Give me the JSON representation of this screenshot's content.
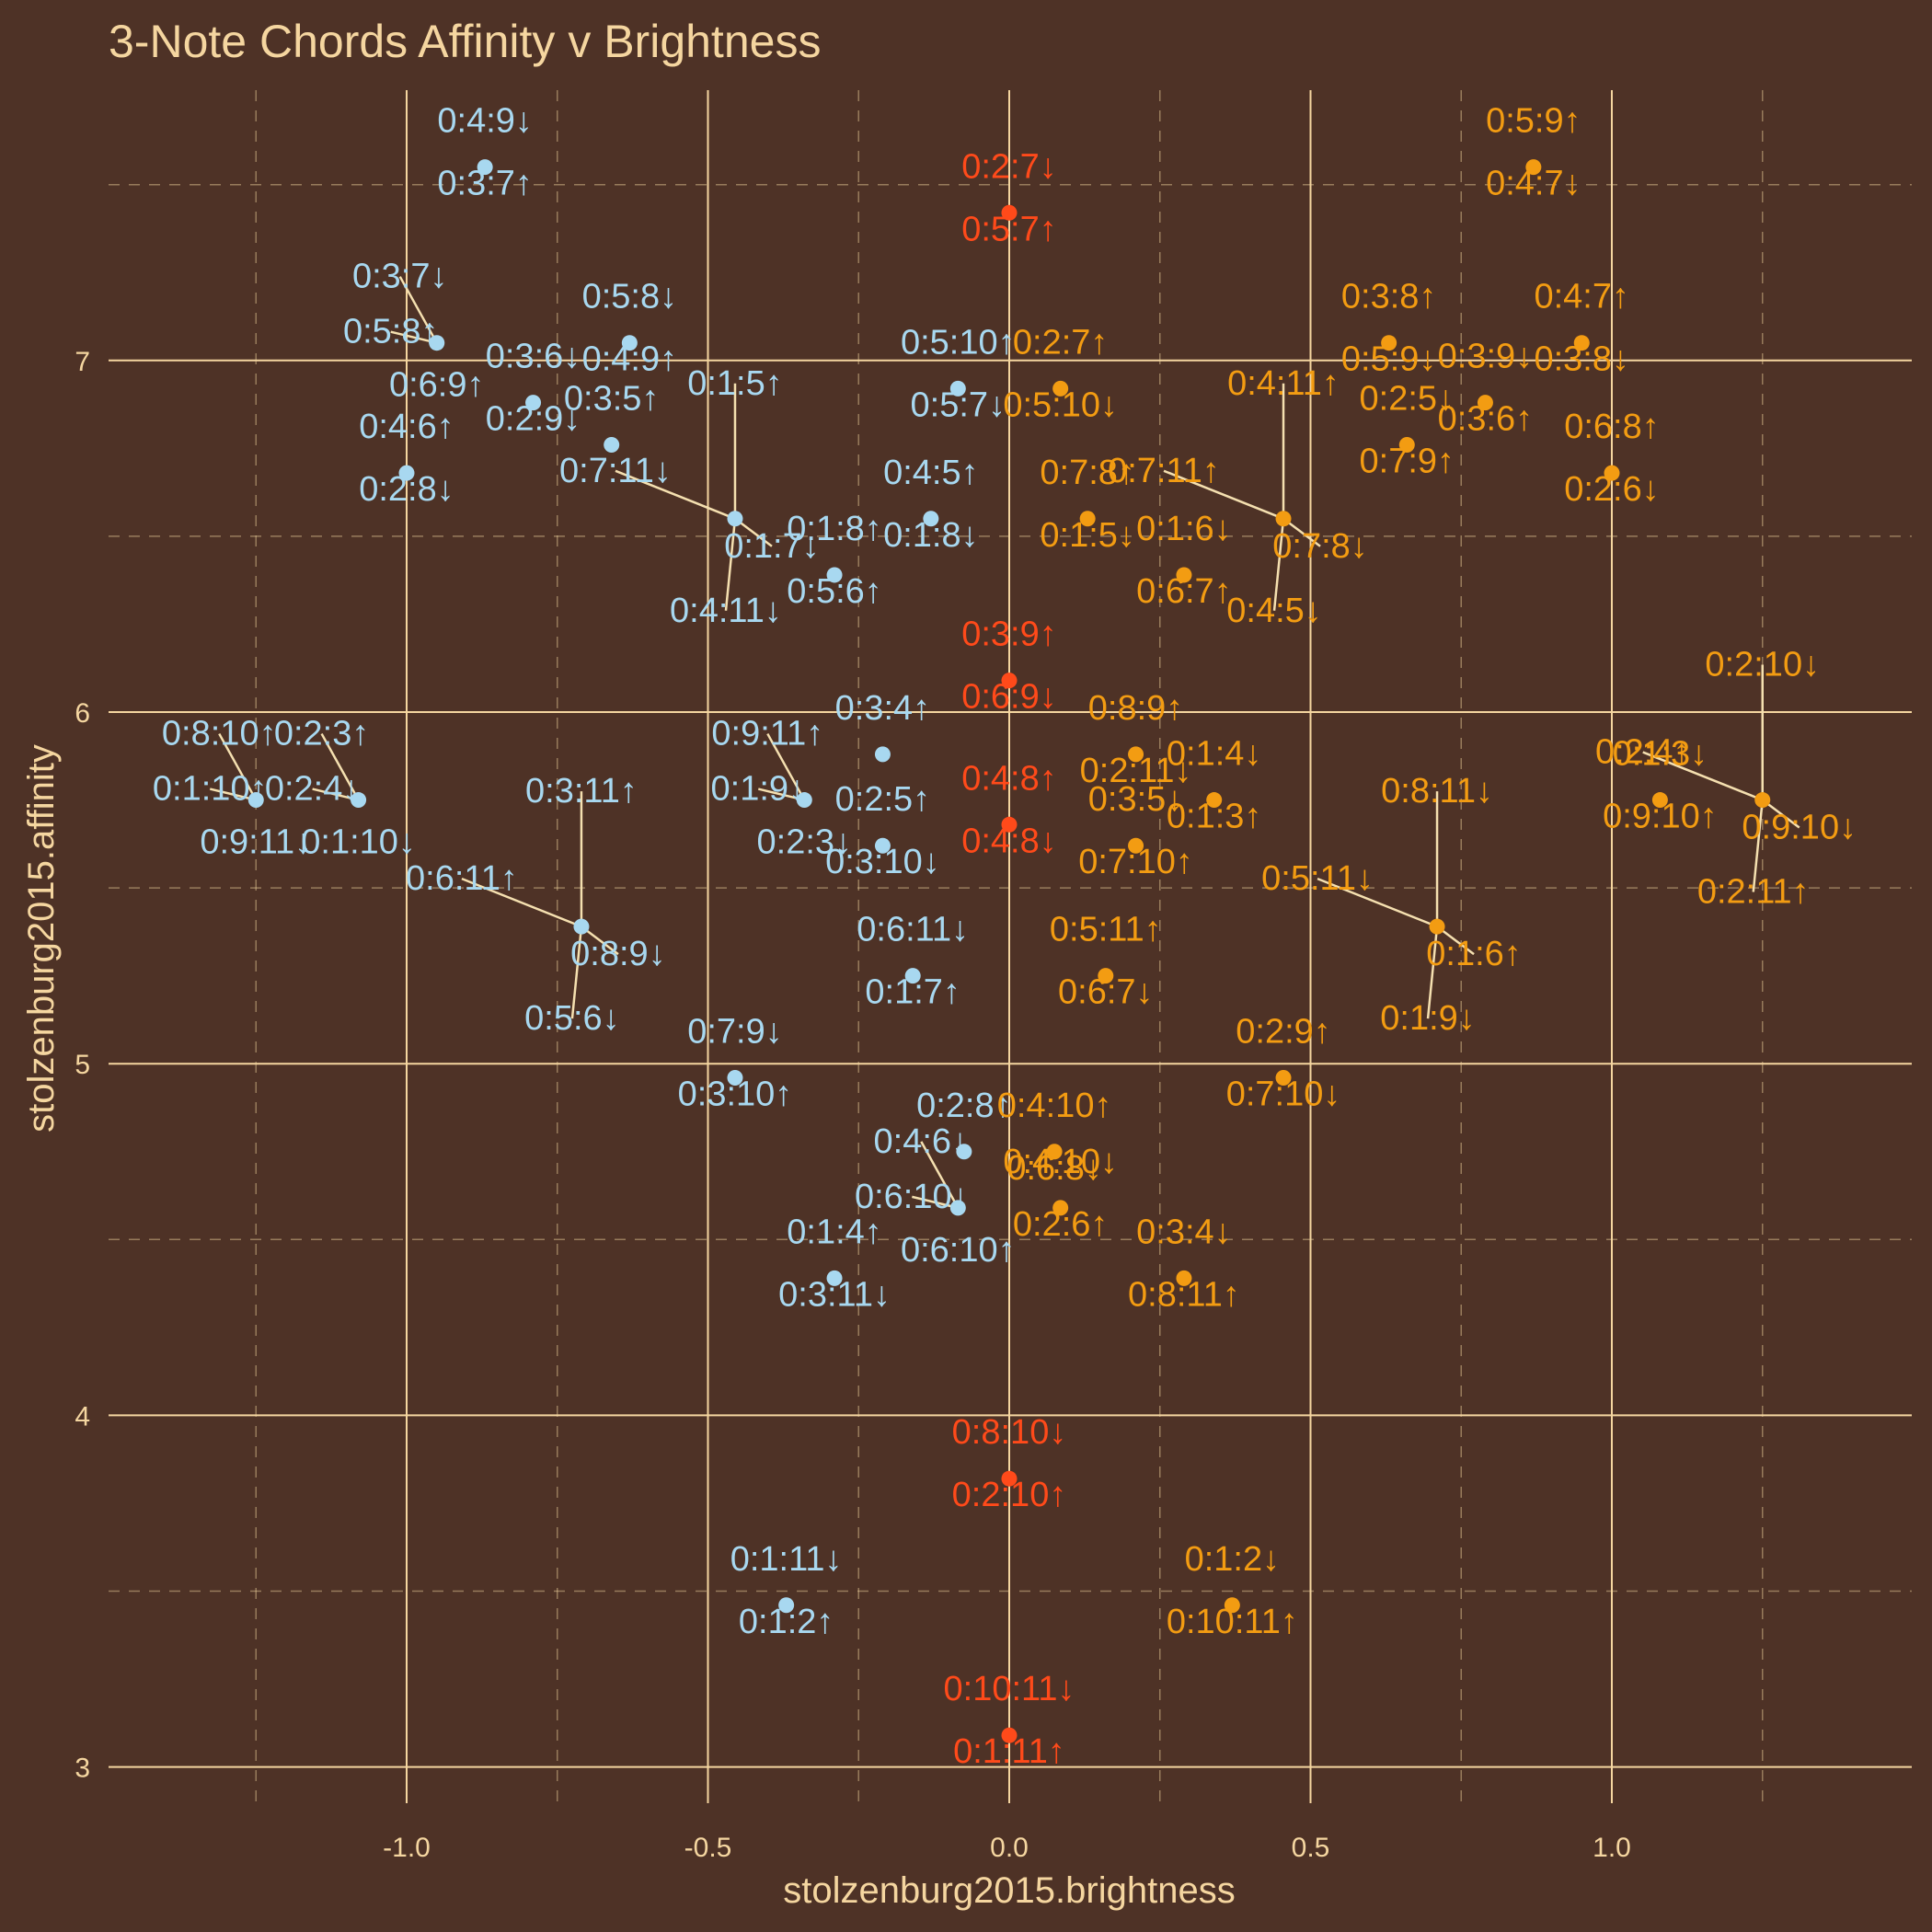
{
  "chart_data": {
    "type": "scatter",
    "title": "3-Note Chords Affinity v Brightness",
    "xlabel": "stolzenburg2015.brightness",
    "ylabel": "stolzenburg2015.affinity",
    "xlim": [
      -1.5,
      1.5
    ],
    "ylim": [
      2.9,
      7.6
    ],
    "x_ticks": [
      -1.0,
      -0.5,
      0.0,
      0.5,
      1.0
    ],
    "x_tick_labels": [
      "-1.0",
      "-0.5",
      "0.0",
      "0.5",
      "1.0"
    ],
    "y_ticks": [
      3,
      4,
      5,
      6,
      7
    ],
    "y_tick_labels": [
      "3",
      "4",
      "5",
      "6",
      "7"
    ],
    "grid": true,
    "legend": "none",
    "colors": {
      "background": "#4e3226",
      "text": "#f5d6a0",
      "grid_major": "#f5d6a0",
      "connector": "#f5e0b0",
      "minor": "#a8d8f0",
      "major": "#f39c12",
      "neutral": "#ff4a1a"
    },
    "series": [
      {
        "group": "minor",
        "color": "#a8d8f0",
        "points": [
          {
            "x": -0.87,
            "y": 7.55,
            "labels": [
              "0:4:9↓",
              "0:3:7↑"
            ]
          },
          {
            "x": -0.95,
            "y": 7.05,
            "labels": [
              "0:3:7↓",
              "0:5:8↑",
              "0:6:9↑"
            ]
          },
          {
            "x": -0.79,
            "y": 6.88,
            "labels": [
              "0:3:6↓",
              "0:2:9↓"
            ]
          },
          {
            "x": -0.63,
            "y": 7.05,
            "labels": [
              "0:5:8↓",
              "0:4:9↑"
            ]
          },
          {
            "x": -1.0,
            "y": 6.68,
            "labels": [
              "0:4:6↑",
              "0:2:8↓"
            ]
          },
          {
            "x": -0.66,
            "y": 6.76,
            "labels": [
              "0:3:5↑"
            ]
          },
          {
            "x": -0.455,
            "y": 6.55,
            "labels": [
              "0:1:5↑",
              "0:7:11↓",
              "0:1:7↓",
              "0:4:11↓"
            ]
          },
          {
            "x": -0.29,
            "y": 6.39,
            "labels": [
              "0:1:8↑",
              "0:5:6↑"
            ]
          },
          {
            "x": -0.085,
            "y": 6.92,
            "labels": [
              "0:5:10↑",
              "0:5:7↓"
            ]
          },
          {
            "x": -0.13,
            "y": 6.55,
            "labels": [
              "0:4:5↑",
              "0:1:8↓"
            ]
          },
          {
            "x": -0.21,
            "y": 5.88,
            "labels": [
              "0:3:4↑"
            ]
          },
          {
            "x": -0.34,
            "y": 5.75,
            "labels": [
              "0:9:11↑",
              "0:1:9↓",
              "0:2:3↓"
            ]
          },
          {
            "x": -0.21,
            "y": 5.62,
            "labels": [
              "0:2:5↑",
              "0:3:10↓"
            ]
          },
          {
            "x": -0.16,
            "y": 5.25,
            "labels": [
              "0:6:11↓",
              "0:1:7↑"
            ]
          },
          {
            "x": -1.25,
            "y": 5.75,
            "labels": [
              "0:8:10↑",
              "0:1:10↑",
              "0:9:11↓"
            ]
          },
          {
            "x": -1.08,
            "y": 5.75,
            "labels": [
              "0:2:3↑",
              "0:2:4↓",
              "0:1:10↓"
            ]
          },
          {
            "x": -0.71,
            "y": 5.39,
            "labels": [
              "0:3:11↑",
              "0:6:11↑",
              "0:8:9↓",
              "0:5:6↓"
            ]
          },
          {
            "x": -0.455,
            "y": 4.96,
            "labels": [
              "0:7:9↓",
              "0:3:10↑"
            ]
          },
          {
            "x": -0.075,
            "y": 4.75,
            "labels": [
              "0:2:8↑"
            ]
          },
          {
            "x": -0.085,
            "y": 4.59,
            "labels": [
              "0:4:6↓",
              "0:6:10↓",
              "0:6:10↑"
            ]
          },
          {
            "x": -0.29,
            "y": 4.39,
            "labels": [
              "0:1:4↑",
              "0:3:11↓"
            ]
          },
          {
            "x": -0.37,
            "y": 3.46,
            "labels": [
              "0:1:11↓",
              "0:1:2↑"
            ]
          }
        ]
      },
      {
        "group": "neutral",
        "color": "#ff4a1a",
        "points": [
          {
            "x": 0.0,
            "y": 7.42,
            "labels": [
              "0:2:7↓",
              "0:5:7↑"
            ]
          },
          {
            "x": 0.0,
            "y": 6.09,
            "labels": [
              "0:3:9↑",
              "0:6:9↓"
            ]
          },
          {
            "x": 0.0,
            "y": 5.68,
            "labels": [
              "0:4:8↑",
              "0:4:8↓"
            ]
          },
          {
            "x": 0.0,
            "y": 3.82,
            "labels": [
              "0:8:10↓",
              "0:2:10↑"
            ]
          },
          {
            "x": 0.0,
            "y": 3.09,
            "labels": [
              "0:10:11↓",
              "0:1:11↑"
            ]
          }
        ]
      },
      {
        "group": "major",
        "color": "#f39c12",
        "points": [
          {
            "x": 0.87,
            "y": 7.55,
            "labels": [
              "0:5:9↑",
              "0:4:7↓"
            ]
          },
          {
            "x": 0.63,
            "y": 7.05,
            "labels": [
              "0:3:8↑",
              "0:5:9↓"
            ]
          },
          {
            "x": 0.95,
            "y": 7.05,
            "labels": [
              "0:4:7↑",
              "0:3:8↓"
            ]
          },
          {
            "x": 0.79,
            "y": 6.88,
            "labels": [
              "0:3:9↓",
              "0:3:6↑"
            ]
          },
          {
            "x": 0.66,
            "y": 6.76,
            "labels": [
              "0:2:5↓",
              "0:7:9↑"
            ]
          },
          {
            "x": 1.0,
            "y": 6.68,
            "labels": [
              "0:6:8↑",
              "0:2:6↓"
            ]
          },
          {
            "x": 0.085,
            "y": 6.92,
            "labels": [
              "0:2:7↑",
              "0:5:10↓"
            ]
          },
          {
            "x": 0.13,
            "y": 6.55,
            "labels": [
              "0:7:8↑",
              "0:1:5↓"
            ]
          },
          {
            "x": 0.455,
            "y": 6.55,
            "labels": [
              "0:4:11↑",
              "0:7:11↑",
              "0:7:8↓",
              "0:4:5↓"
            ]
          },
          {
            "x": 0.29,
            "y": 6.39,
            "labels": [
              "0:1:6↓",
              "0:6:7↑"
            ]
          },
          {
            "x": 0.21,
            "y": 5.88,
            "labels": [
              "0:8:9↑",
              "0:2:11↓"
            ]
          },
          {
            "x": 0.34,
            "y": 5.75,
            "labels": [
              "0:1:4↓",
              "0:1:3↑"
            ]
          },
          {
            "x": 0.21,
            "y": 5.62,
            "labels": [
              "0:3:5↓",
              "0:7:10↑"
            ]
          },
          {
            "x": 0.16,
            "y": 5.25,
            "labels": [
              "0:5:11↑",
              "0:6:7↓"
            ]
          },
          {
            "x": 1.08,
            "y": 5.75,
            "labels": [
              "0:1:3↓",
              "0:9:10↑"
            ]
          },
          {
            "x": 1.25,
            "y": 5.75,
            "labels": [
              "0:2:10↓",
              "0:2:4↑",
              "0:9:10↓",
              "0:2:11↑"
            ]
          },
          {
            "x": 0.71,
            "y": 5.39,
            "labels": [
              "0:8:11↓",
              "0:5:11↓",
              "0:1:6↑",
              "0:1:9↓"
            ]
          },
          {
            "x": 0.455,
            "y": 4.96,
            "labels": [
              "0:2:9↑",
              "0:7:10↓"
            ]
          },
          {
            "x": 0.075,
            "y": 4.75,
            "labels": [
              "0:4:10↑",
              "0:6:8↓"
            ]
          },
          {
            "x": 0.085,
            "y": 4.59,
            "labels": [
              "0:4:10↓",
              "0:2:6↑"
            ]
          },
          {
            "x": 0.29,
            "y": 4.39,
            "labels": [
              "0:3:4↓",
              "0:8:11↑"
            ]
          },
          {
            "x": 0.37,
            "y": 3.46,
            "labels": [
              "0:1:2↓",
              "0:10:11↑"
            ]
          }
        ]
      }
    ]
  }
}
